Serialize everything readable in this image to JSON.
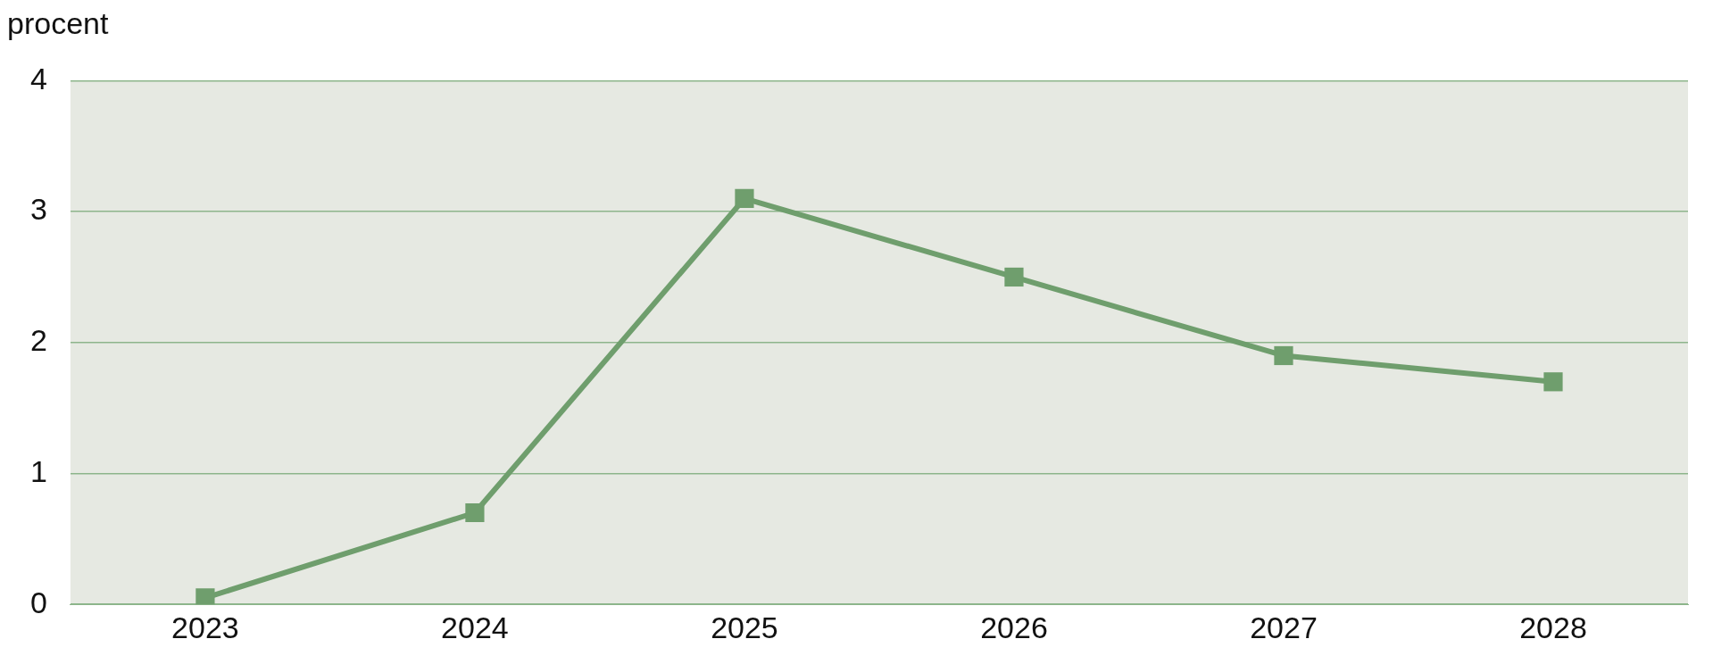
{
  "chart_data": {
    "type": "line",
    "ylabel": "procent",
    "categories": [
      "2023",
      "2024",
      "2025",
      "2026",
      "2027",
      "2028"
    ],
    "series": [
      {
        "color": "#6f9e6d",
        "values": [
          0.05,
          0.7,
          3.1,
          2.5,
          1.9,
          1.7
        ]
      }
    ],
    "ylim": [
      0,
      4
    ],
    "yticks": [
      0,
      1,
      2,
      3,
      4
    ],
    "grid": "y",
    "legend": false,
    "marker": "square",
    "line_style": "solid"
  }
}
